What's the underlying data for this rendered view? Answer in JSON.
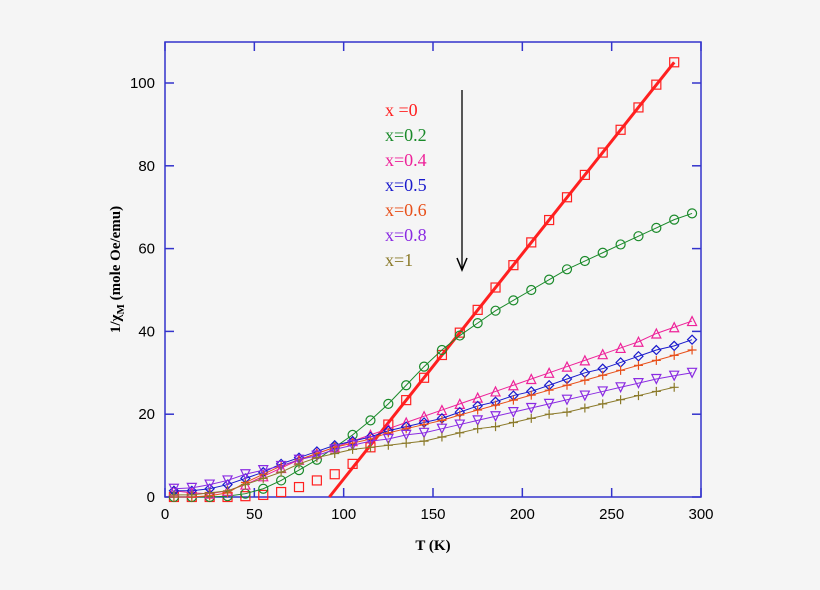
{
  "chart_data": {
    "type": "scatter",
    "xlabel": "T (K)",
    "ylabel": "1/χ",
    "ylabel_sub": "M",
    "ylabel_unit": " (mole Oe/emu)",
    "xlim": [
      0,
      300
    ],
    "ylim": [
      0,
      110
    ],
    "xticks": [
      0,
      50,
      100,
      150,
      200,
      250,
      300
    ],
    "yticks": [
      0,
      20,
      40,
      60,
      80,
      100
    ],
    "grid": false,
    "legend_placement": "top-center",
    "axis_color": "#3333cc",
    "arrow": {
      "direction": "down"
    },
    "x": [
      5,
      15,
      25,
      35,
      45,
      55,
      65,
      75,
      85,
      95,
      105,
      115,
      125,
      135,
      145,
      155,
      165,
      175,
      185,
      195,
      205,
      215,
      225,
      235,
      245,
      255,
      265,
      275,
      285,
      295
    ],
    "series": [
      {
        "name": "x =0",
        "color": "#ff2020",
        "marker": "square",
        "values": [
          0,
          0,
          0,
          0,
          0.2,
          0.5,
          1.2,
          2.4,
          4,
          5.5,
          8,
          12,
          17.5,
          23.4,
          28.8,
          34.3,
          39.7,
          45.2,
          50.6,
          56,
          61.5,
          66.9,
          72.4,
          77.8,
          83.2,
          88.7,
          94.1,
          99.6,
          105,
          null
        ],
        "fit": {
          "x": [
            92,
            285
          ],
          "y": [
            0,
            105
          ]
        }
      },
      {
        "name": "x=0.2",
        "color": "#1a8a2a",
        "marker": "circle",
        "values": [
          0,
          0,
          0,
          0.2,
          0.8,
          2,
          4,
          6.5,
          9,
          12,
          15,
          18.5,
          22.5,
          27,
          31.5,
          35.5,
          39,
          42,
          45,
          47.5,
          50,
          52.5,
          55,
          57,
          59,
          61,
          63,
          65,
          67,
          68.5
        ]
      },
      {
        "name": "x=0.4",
        "color": "#ee2299",
        "marker": "triangle-up",
        "values": [
          1.5,
          1,
          0.8,
          1.5,
          3,
          5,
          7,
          9,
          10.5,
          12,
          13.5,
          15,
          16.5,
          18,
          19.5,
          21,
          22.5,
          24,
          25.5,
          27,
          28.5,
          30,
          31.5,
          33,
          34.5,
          36,
          37.5,
          39.5,
          41,
          42.5
        ]
      },
      {
        "name": "x=0.5",
        "color": "#1a1acc",
        "marker": "diamond",
        "values": [
          1.5,
          1.5,
          2,
          3,
          4.5,
          6,
          8,
          9.5,
          11,
          12.5,
          13.5,
          14.5,
          16,
          17,
          18,
          19,
          20.5,
          22,
          23,
          24.5,
          25.5,
          27,
          28.5,
          30,
          31,
          32.5,
          34,
          35.5,
          36.5,
          38
        ]
      },
      {
        "name": "x=0.6",
        "color": "#e8501a",
        "marker": "plus",
        "values": [
          0,
          0,
          0.3,
          1,
          3.5,
          5.5,
          7.5,
          9,
          10.5,
          12,
          13,
          14,
          15.5,
          16.5,
          17.5,
          18.5,
          19.8,
          21,
          22.2,
          23.4,
          24.6,
          25.8,
          27,
          28.2,
          29.4,
          30.6,
          31.8,
          33,
          34.2,
          35.5
        ]
      },
      {
        "name": "x=0.8",
        "color": "#8a2be2",
        "marker": "triangle-down",
        "values": [
          2,
          2.2,
          3,
          4,
          5.5,
          6.5,
          7.5,
          9,
          10,
          11.5,
          12.5,
          13.5,
          14,
          15,
          15.5,
          16.5,
          17.5,
          18.5,
          19.5,
          20.5,
          21.5,
          22.5,
          23.5,
          24.5,
          25.5,
          26.5,
          27.5,
          28.5,
          29.3,
          30
        ]
      },
      {
        "name": "x=1",
        "color": "#8b7a2a",
        "marker": "plus",
        "values": [
          0.5,
          0.5,
          1,
          1.5,
          3,
          4.5,
          6,
          8,
          9.5,
          10.5,
          11.5,
          12,
          12.5,
          13,
          13.5,
          14.5,
          15.5,
          16.5,
          17,
          18,
          19,
          20,
          20.5,
          21.5,
          22.5,
          23.5,
          24.5,
          25.5,
          26.5,
          null
        ]
      }
    ]
  }
}
